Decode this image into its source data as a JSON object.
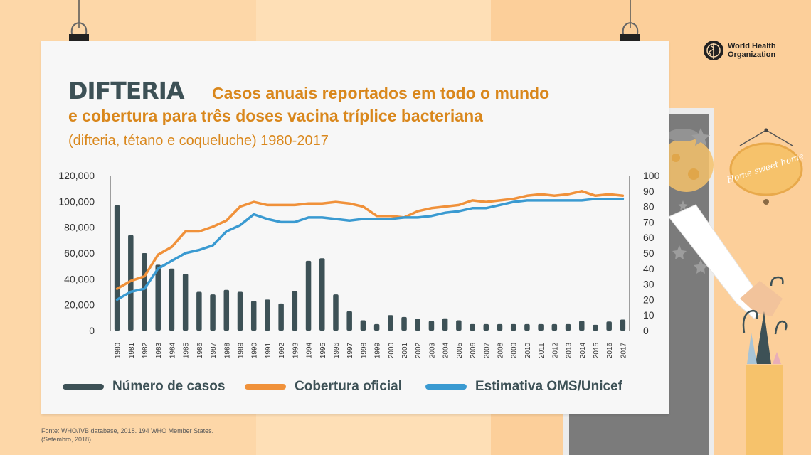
{
  "header": {
    "title_main": "DIFTERIA",
    "title_line1": "Casos anuais reportados em todo o mundo",
    "title_line2": "e cobertura para três doses vacina tríplice bacteriana",
    "title_line3": "(difteria, tétano e coqueluche) 1980-2017"
  },
  "logo": {
    "line1": "World Health",
    "line2": "Organization"
  },
  "sign": {
    "text": "Home sweet home"
  },
  "legend": {
    "cases": "Número de casos",
    "official": "Cobertura oficial",
    "estimate": "Estimativa OMS/Unicef"
  },
  "source": {
    "line1": "Fonte: WHO/IVB database, 2018. 194 WHO Member States.",
    "line2": "(Setembro, 2018)"
  },
  "colors": {
    "bars": "#3d5156",
    "official": "#f0913a",
    "estimate": "#3a9ad1",
    "accent": "#d9871c"
  },
  "chart_data": {
    "type": "bar",
    "title": "Casos anuais reportados em todo o mundo e cobertura para três doses vacina tríplice bacteriana (difteria, tétano e coqueluche) 1980-2017",
    "categories": [
      "1980",
      "1981",
      "1982",
      "1983",
      "1984",
      "1985",
      "1986",
      "1987",
      "1988",
      "1989",
      "1990",
      "1991",
      "1992",
      "1993",
      "1994",
      "1995",
      "1996",
      "1997",
      "1998",
      "1999",
      "2000",
      "2001",
      "2002",
      "2003",
      "2004",
      "2005",
      "2006",
      "2007",
      "2008",
      "2009",
      "2010",
      "2011",
      "2012",
      "2013",
      "2014",
      "2015",
      "2016",
      "2017"
    ],
    "left_axis": {
      "ticks": [
        "120,000",
        "100,000",
        "80,000",
        "60,000",
        "40,000",
        "20,000",
        "0"
      ],
      "ylim": [
        0,
        120000
      ]
    },
    "right_axis": {
      "ticks": [
        "100",
        "90",
        "80",
        "70",
        "60",
        "50",
        "40",
        "30",
        "20",
        "10",
        "0"
      ],
      "ylim": [
        0,
        100
      ]
    },
    "series": [
      {
        "name": "Número de casos",
        "axis": "left",
        "kind": "bar",
        "values": [
          97000,
          74000,
          60000,
          51000,
          48000,
          44000,
          30000,
          28000,
          31500,
          30000,
          23000,
          24000,
          21000,
          30500,
          54000,
          56000,
          28000,
          15000,
          8000,
          5000,
          12000,
          10500,
          9000,
          7500,
          9500,
          8000,
          5000,
          5000,
          5000,
          5000,
          5000,
          5000,
          5000,
          5000,
          7500,
          4500,
          7000,
          8500
        ]
      },
      {
        "name": "Cobertura oficial",
        "axis": "right",
        "kind": "line",
        "values": [
          27,
          32,
          35,
          49,
          54,
          64,
          64,
          67,
          71,
          80,
          83,
          81,
          81,
          81,
          82,
          82,
          83,
          82,
          80,
          74,
          74,
          73,
          77,
          79,
          80,
          81,
          84,
          83,
          84,
          85,
          87,
          88,
          87,
          88,
          90,
          87,
          88,
          87
        ]
      },
      {
        "name": "Estimativa OMS/Unicef",
        "axis": "right",
        "kind": "line",
        "values": [
          20,
          25,
          27,
          40,
          45,
          50,
          52,
          55,
          64,
          68,
          75,
          72,
          70,
          70,
          73,
          73,
          72,
          71,
          72,
          72,
          72,
          73,
          73,
          74,
          76,
          77,
          79,
          79,
          81,
          83,
          84,
          84,
          84,
          84,
          84,
          85,
          85,
          85
        ]
      }
    ]
  }
}
